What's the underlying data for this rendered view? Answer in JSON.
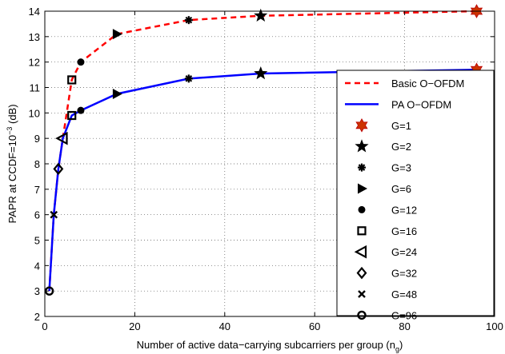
{
  "chart_data": {
    "type": "line",
    "xlabel": "Number of active data−carrying subcarriers per group (n",
    "xlabel_sub": "g",
    "xlabel_end": ")",
    "ylabel": "PAPR at CCDF=10",
    "ylabel_sup": "−3",
    "ylabel_end": " (dB)",
    "xlim": [
      0,
      100
    ],
    "ylim": [
      2,
      14
    ],
    "xticks": [
      0,
      20,
      40,
      60,
      80,
      100
    ],
    "yticks": [
      2,
      3,
      4,
      5,
      6,
      7,
      8,
      9,
      10,
      11,
      12,
      13,
      14
    ],
    "grid": true,
    "legend_position": "right",
    "series": [
      {
        "name": "Basic O−OFDM",
        "color": "#ff0000",
        "style": "dashed",
        "x": [
          1,
          2,
          3,
          4,
          6,
          8,
          16,
          32,
          48,
          96
        ],
        "y": [
          3.0,
          6.0,
          7.8,
          9.0,
          11.3,
          12.0,
          13.1,
          13.65,
          13.82,
          14.0
        ]
      },
      {
        "name": "PA O−OFDM",
        "color": "#0000ff",
        "style": "solid",
        "x": [
          1,
          2,
          3,
          4,
          6,
          8,
          16,
          32,
          48,
          96
        ],
        "y": [
          3.0,
          6.0,
          7.8,
          9.0,
          9.9,
          10.1,
          10.75,
          11.35,
          11.55,
          11.7
        ]
      }
    ],
    "markers": [
      {
        "label": "G=1",
        "shape": "hexagram",
        "x": 96,
        "y_basic": 14.0,
        "y_pa": 11.7
      },
      {
        "label": "G=2",
        "shape": "pentagram",
        "x": 48,
        "y_basic": 13.82,
        "y_pa": 11.55
      },
      {
        "label": "G=3",
        "shape": "asterisk",
        "x": 32,
        "y_basic": 13.65,
        "y_pa": 11.35
      },
      {
        "label": "G=6",
        "shape": "triangle-right",
        "x": 16,
        "y_basic": 13.1,
        "y_pa": 10.75
      },
      {
        "label": "G=12",
        "shape": "dot",
        "x": 8,
        "y_basic": 12.0,
        "y_pa": 10.1
      },
      {
        "label": "G=16",
        "shape": "square",
        "x": 6,
        "y_basic": 11.3,
        "y_pa": 9.9
      },
      {
        "label": "G=24",
        "shape": "triangle-left",
        "x": 4,
        "y_basic": 9.0,
        "y_pa": 9.0
      },
      {
        "label": "G=32",
        "shape": "diamond",
        "x": 3,
        "y_basic": 7.8,
        "y_pa": 7.8
      },
      {
        "label": "G=48",
        "shape": "x",
        "x": 2,
        "y_basic": 6.0,
        "y_pa": 6.0
      },
      {
        "label": "G=96",
        "shape": "circle",
        "x": 1,
        "y_basic": 3.0,
        "y_pa": 3.0
      }
    ],
    "marker_color_g1": "#cc3300"
  }
}
